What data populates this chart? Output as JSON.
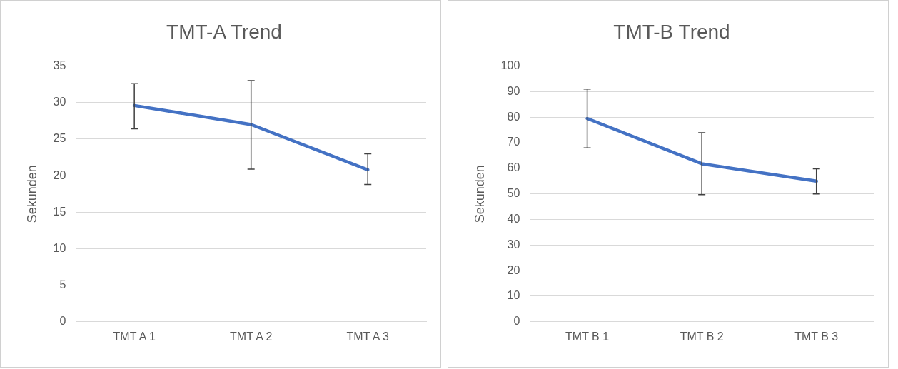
{
  "chart_data": [
    {
      "type": "line",
      "title": "TMT-A Trend",
      "ylabel": "Sekunden",
      "categories": [
        "TMT A 1",
        "TMT A 2",
        "TMT A 3"
      ],
      "series": [
        {
          "color": "#4472c4",
          "values": [
            29.6,
            27.0,
            20.8
          ],
          "errors": [
            [
              26.4,
              32.6
            ],
            [
              20.9,
              33.0
            ],
            [
              18.8,
              23.0
            ]
          ]
        }
      ],
      "ylim": [
        0,
        35
      ],
      "yticks": [
        0,
        5,
        10,
        15,
        20,
        25,
        30,
        35
      ],
      "grid": "y",
      "legend": false,
      "marker": "none"
    },
    {
      "type": "line",
      "title": "TMT-B Trend",
      "ylabel": "Sekunden",
      "categories": [
        "TMT B 1",
        "TMT B 2",
        "TMT B 3"
      ],
      "series": [
        {
          "color": "#4472c4",
          "values": [
            79.5,
            61.8,
            55.0
          ],
          "errors": [
            [
              68,
              91
            ],
            [
              49.7,
              73.9
            ],
            [
              50,
              59.8
            ]
          ]
        }
      ],
      "ylim": [
        0,
        100
      ],
      "yticks": [
        0,
        10,
        20,
        30,
        40,
        50,
        60,
        70,
        80,
        90,
        100
      ],
      "grid": "y",
      "legend": false,
      "marker": "none"
    }
  ]
}
